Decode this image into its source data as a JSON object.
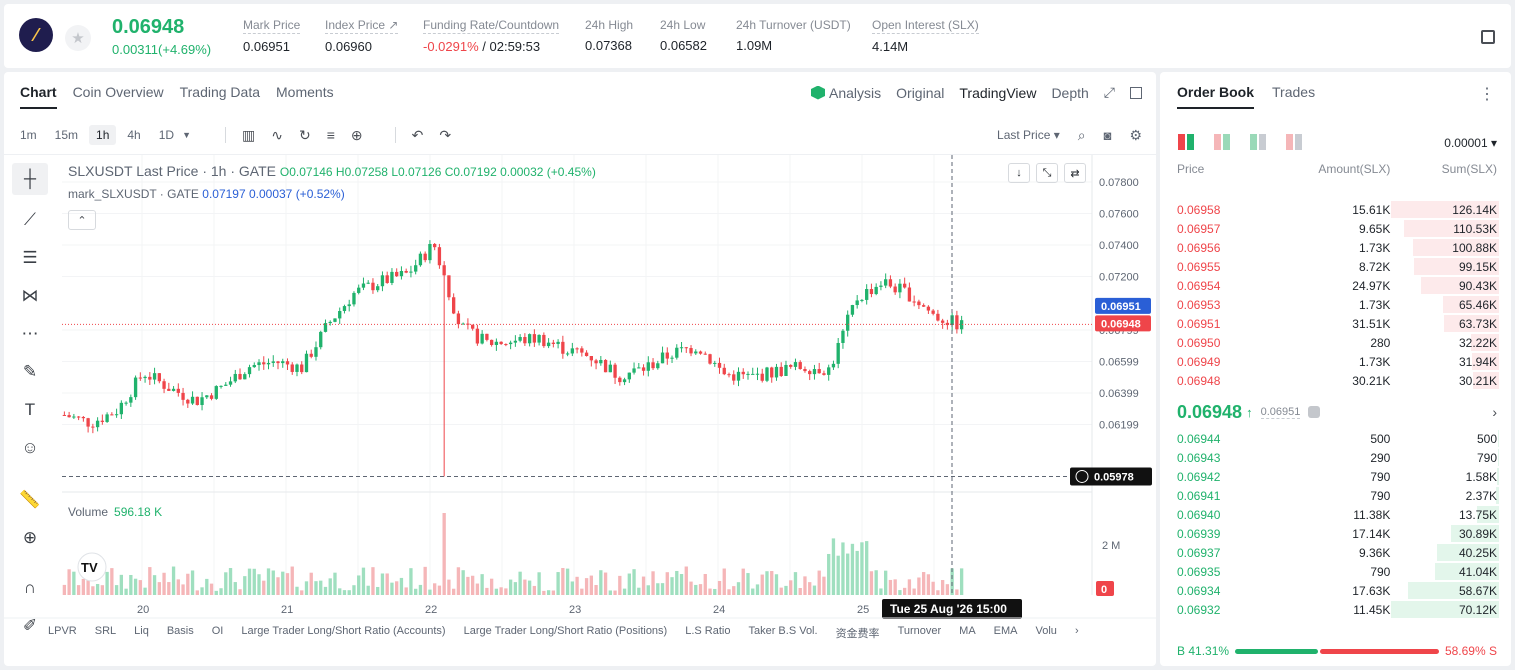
{
  "header": {
    "price": "0.06948",
    "change": "0.00311(+4.69%)",
    "stats": [
      {
        "label": "Mark Price",
        "value": "0.06951"
      },
      {
        "label": "Index Price ↗",
        "value": "0.06960"
      },
      {
        "label": "Funding Rate/Countdown",
        "value_neg": "-0.0291%",
        "value_rest": " / 02:59:53"
      },
      {
        "label": "24h High",
        "value": "0.07368"
      },
      {
        "label": "24h Low",
        "value": "0.06582"
      },
      {
        "label": "24h Turnover (USDT)",
        "value": "1.09M"
      },
      {
        "label": "Open Interest (SLX)",
        "value": "4.14M"
      }
    ]
  },
  "chart_tabs": [
    "Chart",
    "Coin Overview",
    "Trading Data",
    "Moments"
  ],
  "view_tabs": {
    "analysis": "Analysis",
    "original": "Original",
    "tradingview": "TradingView",
    "depth": "Depth"
  },
  "timeframes": [
    "1m",
    "15m",
    "1h",
    "4h",
    "1D"
  ],
  "price_type": "Last Price ▾",
  "legend": {
    "title": "SLXUSDT Last Price · 1h · GATE",
    "ohlc": "O0.07146 H0.07258 L0.07126 C0.07192 0.00032 (+0.45%)",
    "mark_label": "mark_SLXUSDT · GATE",
    "mark_vals": "0.07197 0.00037 (+0.52%)"
  },
  "volume_legend": {
    "label": "Volume",
    "value": "596.18 K"
  },
  "y_axis_ticks": [
    "0.07800",
    "0.07600",
    "0.07400",
    "0.07200",
    "0.06799",
    "0.06599",
    "0.06399",
    "0.06199"
  ],
  "price_tags": {
    "mark": "0.06951",
    "last": "0.06948",
    "low_line": "0.05978"
  },
  "volume_axis": [
    "2 M",
    "0"
  ],
  "x_axis_ticks": [
    "20",
    "21",
    "22",
    "23",
    "24",
    "25"
  ],
  "crosshair_label": "Tue 25 Aug '26   15:00",
  "indicators": [
    "LPVR",
    "SRL",
    "Liq",
    "Basis",
    "OI",
    "Large Trader Long/Short Ratio (Accounts)",
    "Large Trader Long/Short Ratio (Positions)",
    "L.S Ratio",
    "Taker B.S Vol.",
    "资金费率",
    "Turnover",
    "MA",
    "EMA",
    "Volu"
  ],
  "chart_data": {
    "type": "candlestick",
    "title": "SLXUSDT Last Price · 1h · GATE",
    "ylim": [
      0.06,
      0.079
    ],
    "x": [
      "20",
      "21",
      "22",
      "23",
      "24",
      "25"
    ],
    "close_path": [
      0.0637,
      0.0632,
      0.064,
      0.0664,
      0.0654,
      0.0646,
      0.0655,
      0.0668,
      0.0671,
      0.0667,
      0.0695,
      0.0715,
      0.0722,
      0.0727,
      0.0746,
      0.0693,
      0.0683,
      0.0684,
      0.0686,
      0.0679,
      0.0674,
      0.0662,
      0.0667,
      0.0676,
      0.0681,
      0.0663,
      0.0661,
      0.0665,
      0.0668,
      0.0666,
      0.0711,
      0.0722,
      0.0714,
      0.07,
      0.0694
    ],
    "volume_max": 2600000,
    "last_price": 0.06948,
    "mark_price": 0.06951
  },
  "orderbook": {
    "tabs": [
      "Order Book",
      "Trades"
    ],
    "precision": "0.00001 ▾",
    "headers": [
      "Price",
      "Amount(SLX)",
      "Sum(SLX)"
    ],
    "asks": [
      [
        "0.06958",
        "15.61K",
        "126.14K"
      ],
      [
        "0.06957",
        "9.65K",
        "110.53K"
      ],
      [
        "0.06956",
        "1.73K",
        "100.88K"
      ],
      [
        "0.06955",
        "8.72K",
        "99.15K"
      ],
      [
        "0.06954",
        "24.97K",
        "90.43K"
      ],
      [
        "0.06953",
        "1.73K",
        "65.46K"
      ],
      [
        "0.06951",
        "31.51K",
        "63.73K"
      ],
      [
        "0.06950",
        "280",
        "32.22K"
      ],
      [
        "0.06949",
        "1.73K",
        "31.94K"
      ],
      [
        "0.06948",
        "30.21K",
        "30.21K"
      ]
    ],
    "ask_depth": [
      1.0,
      0.88,
      0.8,
      0.79,
      0.72,
      0.52,
      0.51,
      0.26,
      0.25,
      0.24
    ],
    "last": "0.06948",
    "last_arrow": "↑",
    "mark": "0.06951",
    "bids": [
      [
        "0.06944",
        "500",
        "500"
      ],
      [
        "0.06943",
        "290",
        "790"
      ],
      [
        "0.06942",
        "790",
        "1.58K"
      ],
      [
        "0.06941",
        "790",
        "2.37K"
      ],
      [
        "0.06940",
        "11.38K",
        "13.75K"
      ],
      [
        "0.06939",
        "17.14K",
        "30.89K"
      ],
      [
        "0.06937",
        "9.36K",
        "40.25K"
      ],
      [
        "0.06935",
        "790",
        "41.04K"
      ],
      [
        "0.06934",
        "17.63K",
        "58.67K"
      ],
      [
        "0.06932",
        "11.45K",
        "70.12K"
      ]
    ],
    "bid_depth": [
      0.01,
      0.01,
      0.02,
      0.03,
      0.2,
      0.44,
      0.57,
      0.59,
      0.84,
      1.0
    ],
    "buy_ratio": "41.31%",
    "sell_ratio": "58.69%",
    "buy_label": "B",
    "sell_label": "S"
  },
  "colors": {
    "up": "#20b26c",
    "down": "#ef454a",
    "mark": "#2a5fd6"
  }
}
